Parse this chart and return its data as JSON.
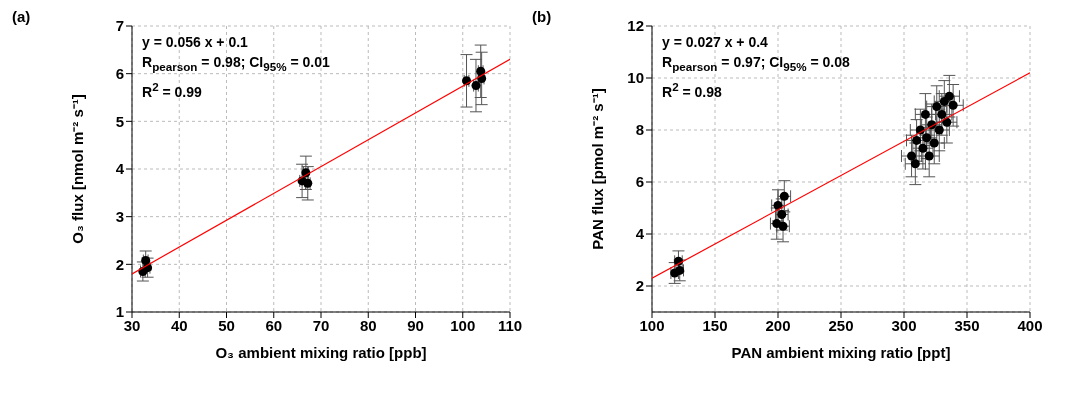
{
  "chart_data": [
    {
      "type": "scatter",
      "xlabel": "O₃ ambient mixing ratio [ppb]",
      "ylabel": "O₃ flux [nmol m⁻² s⁻¹]",
      "xlim": [
        30,
        110
      ],
      "xticks": [
        30,
        40,
        50,
        60,
        70,
        80,
        90,
        100,
        110
      ],
      "ylim": [
        1,
        7
      ],
      "yticks": [
        1,
        2,
        3,
        4,
        5,
        6,
        7
      ],
      "grid": true,
      "marker": "circle",
      "annotations": [
        "(a)",
        "y = 0.056 x + 0.1",
        "R$_{pearson}$ = 0.98; CI$_{95%}$ = 0.01",
        "R$^{2}$ = 0.99"
      ],
      "series": [
        {
          "color": "#000000",
          "x": [
            32.3,
            32.9,
            33.3,
            66.0,
            66.8,
            67.2,
            100.8,
            102.8,
            103.8,
            104.0
          ],
          "values": [
            1.85,
            2.08,
            1.93,
            3.75,
            3.92,
            3.7,
            5.85,
            5.75,
            6.05,
            5.9
          ],
          "errors": [
            0.2,
            0.2,
            0.2,
            0.35,
            0.35,
            0.35,
            0.55,
            0.55,
            0.55,
            0.55
          ],
          "xerrors": [
            0.5,
            0.5,
            0.5,
            0.5,
            0.5,
            0.5,
            0.5,
            0.5,
            0.5,
            0.5
          ]
        },
        {
          "type": "line",
          "marker": "none",
          "color": "#ff0000",
          "x": [
            30,
            110
          ],
          "values": [
            1.8,
            6.3
          ]
        }
      ]
    },
    {
      "type": "scatter",
      "xlabel": "PAN ambient mixing ratio [ppt]",
      "ylabel": "PAN flux [pmol m⁻² s⁻¹]",
      "xlim": [
        100,
        400
      ],
      "xticks": [
        100,
        150,
        200,
        250,
        300,
        350,
        400
      ],
      "ylim": [
        1,
        12
      ],
      "yticks": [
        2,
        4,
        6,
        8,
        10,
        12
      ],
      "grid": true,
      "marker": "circle",
      "annotations": [
        "(b)",
        "y = 0.027 x + 0.4",
        "R$_{pearson}$ = 0.97; CI$_{95%}$ = 0.08",
        "R$^{2}$ = 0.98"
      ],
      "series": [
        {
          "color": "#000000",
          "x": [
            118,
            121,
            122,
            199,
            203,
            200,
            205,
            204,
            306,
            309,
            310,
            313,
            315,
            317,
            318,
            320,
            322,
            324,
            326,
            328,
            330,
            332,
            334,
            336,
            339
          ],
          "values": [
            2.5,
            2.95,
            2.6,
            4.4,
            4.75,
            5.1,
            5.45,
            4.3,
            7.0,
            6.7,
            7.6,
            8.0,
            7.3,
            8.6,
            7.7,
            7.0,
            8.2,
            7.5,
            8.9,
            8.0,
            8.6,
            9.1,
            8.3,
            9.3,
            8.95
          ],
          "errors": [
            0.4,
            0.4,
            0.4,
            0.6,
            0.6,
            0.6,
            0.6,
            0.6,
            0.8,
            0.8,
            0.8,
            0.8,
            0.8,
            0.8,
            0.8,
            0.8,
            0.8,
            0.8,
            0.8,
            0.8,
            0.8,
            0.8,
            0.8,
            0.8,
            0.8
          ],
          "xerrors": [
            3,
            3,
            3,
            5,
            5,
            5,
            5,
            5,
            8,
            8,
            8,
            8,
            8,
            8,
            8,
            8,
            8,
            8,
            8,
            8,
            8,
            8,
            8,
            8,
            8
          ]
        },
        {
          "type": "line",
          "marker": "none",
          "color": "#ff0000",
          "x": [
            100,
            400
          ],
          "values": [
            2.3,
            10.2
          ]
        }
      ]
    }
  ]
}
